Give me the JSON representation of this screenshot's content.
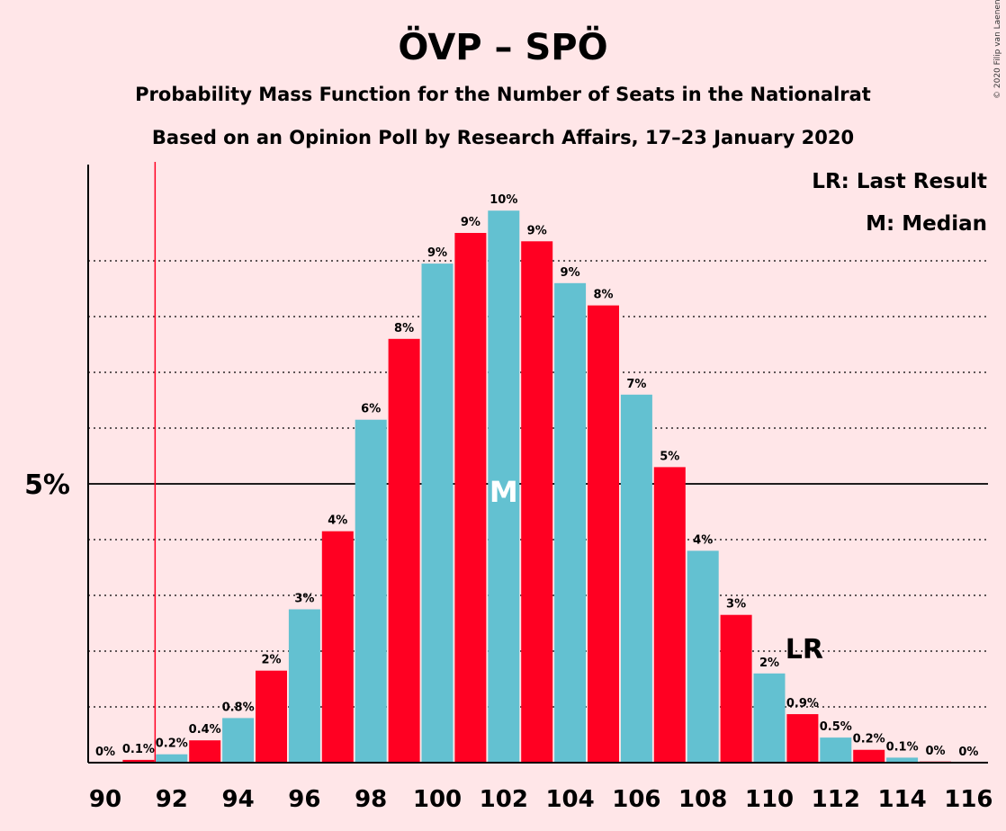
{
  "chart_data": {
    "type": "bar",
    "title": "ÖVP – SPÖ",
    "subtitle1": "Probability Mass Function for the Number of Seats in the Nationalrat",
    "subtitle2": "Based on an Opinion Poll by Research Affairs, 17–23 January 2020",
    "copyright": "© 2020 Filip van Laenen",
    "legend": {
      "lr": "LR: Last Result",
      "m": "M: Median",
      "placement": "top-right"
    },
    "ytick_label": "5%",
    "ytick_value": 5,
    "ylim": [
      0,
      10.7
    ],
    "gridlines": [
      1,
      2,
      3,
      4,
      6,
      7,
      8,
      9
    ],
    "categories": [
      90,
      91,
      92,
      93,
      94,
      95,
      96,
      97,
      98,
      99,
      100,
      101,
      102,
      103,
      104,
      105,
      106,
      107,
      108,
      109,
      110,
      111,
      112,
      113,
      114,
      115,
      116
    ],
    "xtick_labels": [
      "90",
      "92",
      "94",
      "96",
      "98",
      "100",
      "102",
      "104",
      "106",
      "108",
      "110",
      "112",
      "114",
      "116"
    ],
    "values": [
      0,
      0.05,
      0.15,
      0.4,
      0.8,
      1.65,
      2.75,
      4.15,
      6.15,
      7.6,
      8.95,
      9.5,
      9.9,
      9.35,
      8.6,
      8.2,
      6.6,
      5.3,
      3.8,
      2.65,
      1.6,
      0.87,
      0.45,
      0.23,
      0.09,
      0.02,
      0
    ],
    "labels": [
      "0%",
      "0.1%",
      "0.2%",
      "0.4%",
      "0.8%",
      "2%",
      "3%",
      "4%",
      "6%",
      "8%",
      "9%",
      "9%",
      "10%",
      "9%",
      "9%",
      "8%",
      "7%",
      "5%",
      "4%",
      "3%",
      "2%",
      "0.9%",
      "0.5%",
      "0.2%",
      "0.1%",
      "0%",
      "0%"
    ],
    "median": 102,
    "median_label": "M",
    "last_result": 111,
    "last_result_label": "LR",
    "last_result_line": 91.5,
    "colors": {
      "bar_a": "#63c1d1",
      "bar_b": "#ff0022",
      "background": "#ffe6e8",
      "marker_line": "#ff0022"
    }
  }
}
